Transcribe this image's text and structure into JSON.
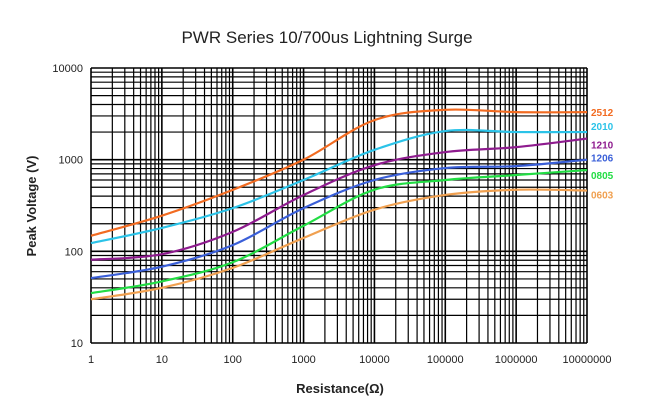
{
  "chart_data": {
    "type": "line",
    "title": "PWR Series 10/700us Lightning Surge",
    "xlabel": "Resistance(Ω)",
    "ylabel": "Peak Voltage (V)",
    "xscale": "log",
    "yscale": "log",
    "xlim": [
      1,
      10000000
    ],
    "ylim": [
      10,
      10000
    ],
    "grid": true,
    "legend": "right-end labels",
    "x_ticks": [
      "1",
      "10",
      "100",
      "1000",
      "10000",
      "100000",
      "1000000",
      "10000000"
    ],
    "y_ticks": [
      "10",
      "100",
      "1000",
      "10000"
    ],
    "x": [
      1,
      10,
      100,
      1000,
      10000,
      100000,
      1000000,
      10000000
    ],
    "series": [
      {
        "name": "2512",
        "color": "#f26b21",
        "values": [
          148,
          245,
          468,
          1000,
          2700,
          3500,
          3300,
          3300
        ]
      },
      {
        "name": "2010",
        "color": "#2bc3e8",
        "values": [
          123,
          180,
          296,
          600,
          1280,
          2050,
          2000,
          2000
        ]
      },
      {
        "name": "1210",
        "color": "#8e1b8e",
        "values": [
          81,
          93,
          163,
          412,
          870,
          1210,
          1370,
          1700
        ]
      },
      {
        "name": "1206",
        "color": "#3a5fd8",
        "values": [
          51,
          68,
          117,
          296,
          600,
          810,
          850,
          1000
        ]
      },
      {
        "name": "0805",
        "color": "#22dd44",
        "values": [
          35,
          47,
          76,
          190,
          470,
          600,
          680,
          770
        ]
      },
      {
        "name": "0603",
        "color": "#f0a050",
        "values": [
          30,
          40,
          66,
          140,
          285,
          412,
          470,
          460
        ]
      }
    ]
  }
}
